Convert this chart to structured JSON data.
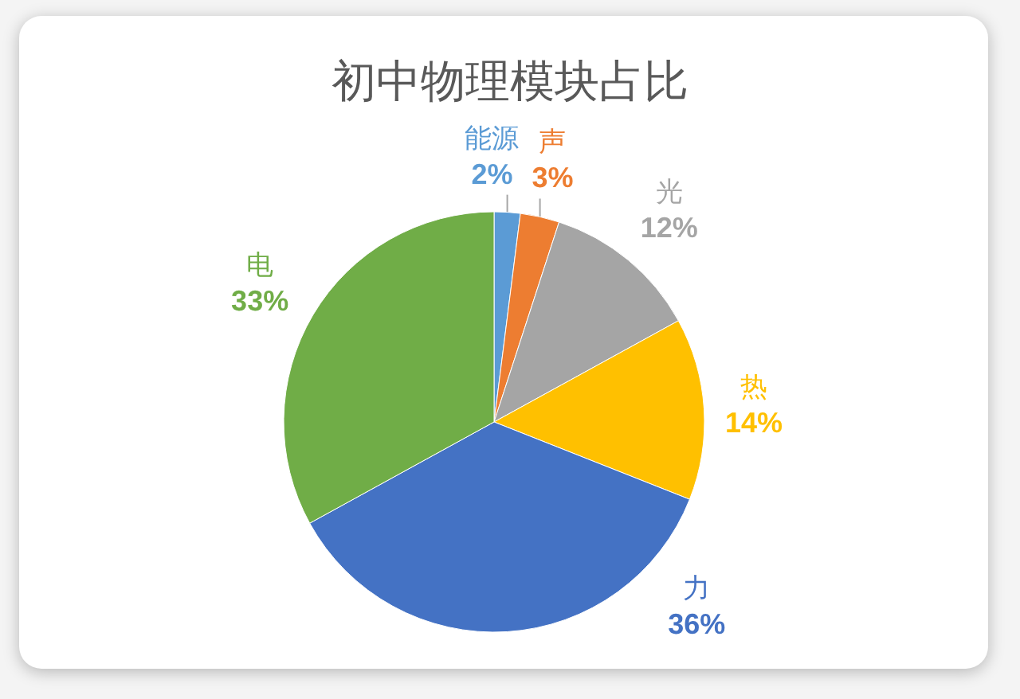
{
  "chart_data": {
    "type": "pie",
    "title": "初中物理模块占比",
    "categories": [
      "能源",
      "声",
      "光",
      "热",
      "力",
      "电"
    ],
    "values": [
      2,
      3,
      12,
      14,
      36,
      33
    ],
    "colors": [
      "#5b9bd5",
      "#ed7d31",
      "#a5a5a5",
      "#ffc000",
      "#4472c4",
      "#70ad47"
    ],
    "value_labels": [
      "2%",
      "3%",
      "12%",
      "14%",
      "36%",
      "33%"
    ]
  }
}
